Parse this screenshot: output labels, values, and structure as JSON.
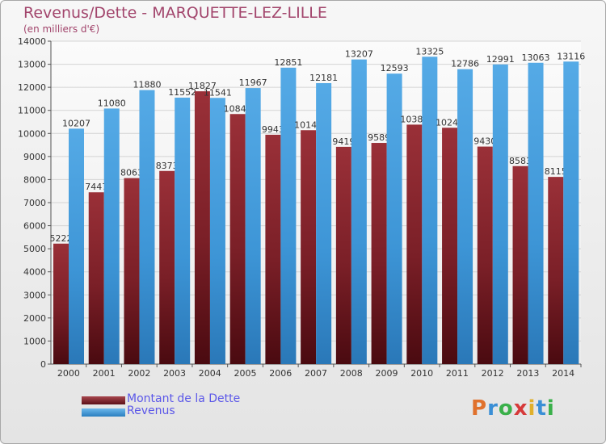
{
  "header": {
    "title": "Revenus/Dette - MARQUETTE-LEZ-LILLE",
    "subtitle": "(en milliers d'€)"
  },
  "logo": {
    "text": "Proxiti",
    "letter_colors": [
      "#e0712c",
      "#3a8fd6",
      "#3ab04a",
      "#d63a3a",
      "#e0b02c",
      "#3a8fd6",
      "#3ab04a"
    ]
  },
  "colors": {
    "dette": "#8b2c33",
    "revenus": "#3d9ad9",
    "title": "#a2456c",
    "legend_text": "#5b57e8"
  },
  "chart_data": {
    "type": "bar",
    "title": "Revenus/Dette - MARQUETTE-LEZ-LILLE",
    "subtitle": "(en milliers d'€)",
    "categories": [
      "2000",
      "2001",
      "2002",
      "2003",
      "2004",
      "2005",
      "2006",
      "2007",
      "2008",
      "2009",
      "2010",
      "2011",
      "2012",
      "2013",
      "2014"
    ],
    "series": [
      {
        "name": "Montant de la Dette",
        "values": [
          5222,
          7447,
          8063,
          8373,
          11827,
          10841,
          9943,
          10141,
          9419,
          9589,
          10382,
          10246,
          9430,
          8583,
          8115
        ],
        "labels": [
          "5222",
          "7447",
          "8063",
          "8373",
          "11827",
          "10841",
          "9943",
          "10141",
          "9419",
          "9589",
          "10382",
          "10246",
          "9430",
          "8583",
          "8115"
        ]
      },
      {
        "name": "Revenus",
        "values": [
          10207,
          11080,
          11880,
          11552,
          11541,
          11967,
          12851,
          12181,
          13207,
          12593,
          13325,
          12786,
          12991,
          13063,
          13116
        ],
        "labels": [
          "10207",
          "11080",
          "11880",
          "11552",
          "11541",
          "11967",
          "12851",
          "12181",
          "13207",
          "12593",
          "13325",
          "12786",
          "12991",
          "13063",
          "13116"
        ]
      }
    ],
    "ylim": [
      0,
      14000
    ],
    "yticks": [
      0,
      1000,
      2000,
      3000,
      4000,
      5000,
      6000,
      7000,
      8000,
      9000,
      10000,
      11000,
      12000,
      13000,
      14000
    ],
    "grid": true,
    "legend_position": "bottom-left"
  }
}
